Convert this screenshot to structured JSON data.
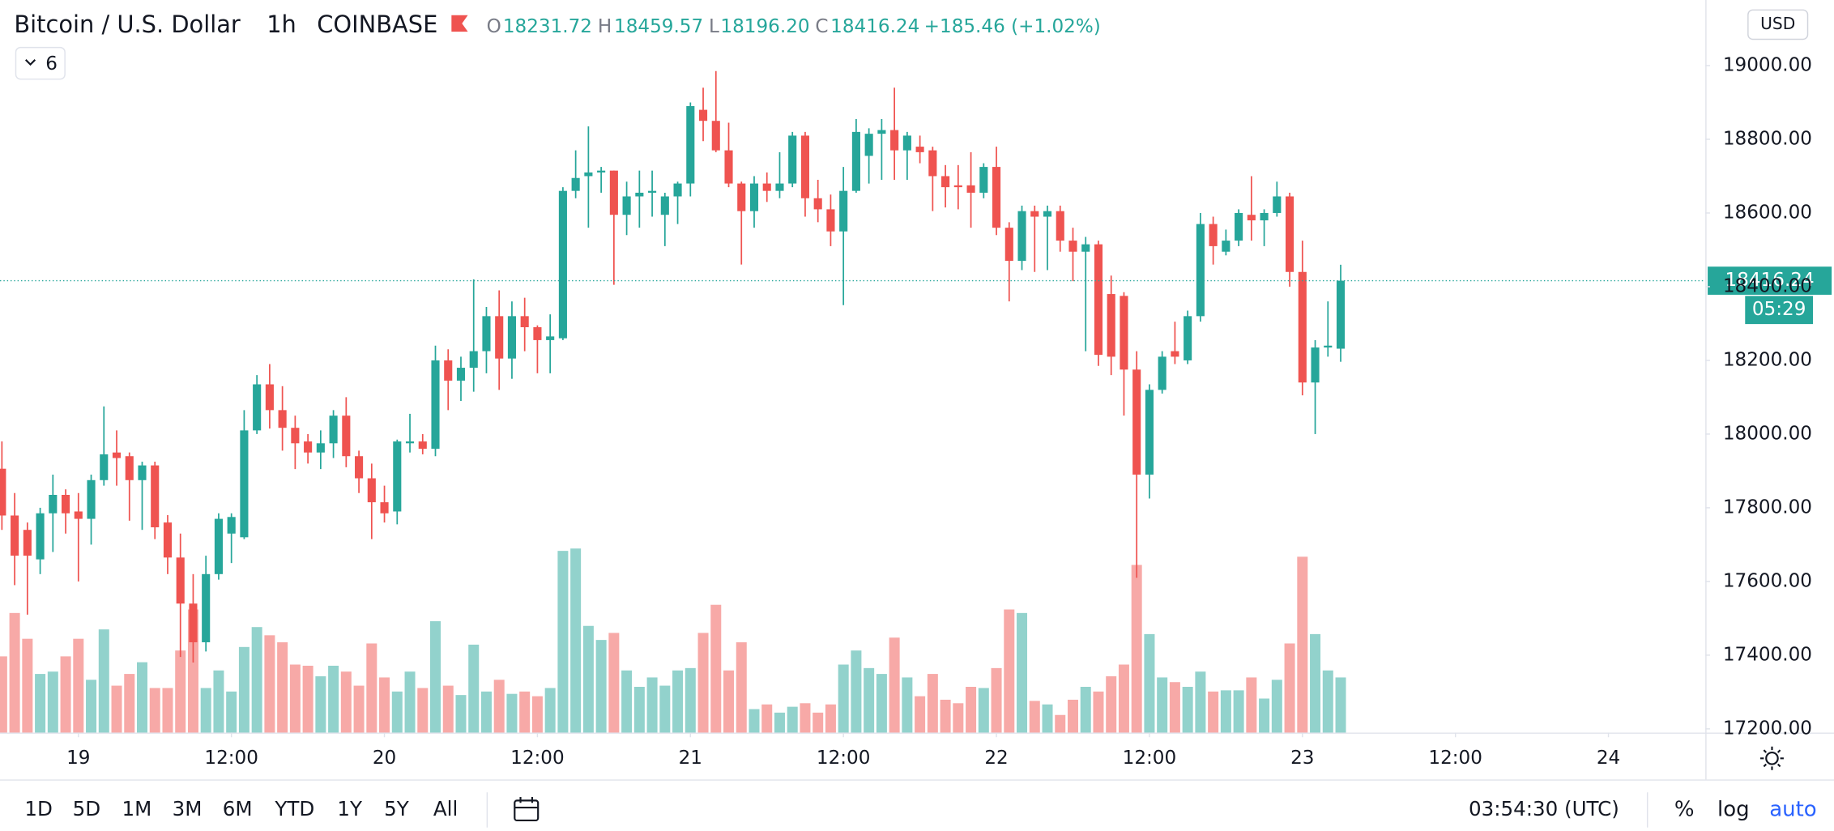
{
  "header": {
    "symbol": "Bitcoin / U.S. Dollar",
    "interval": "1h",
    "exchange": "COINBASE",
    "open_label": "O",
    "open": "18231.72",
    "high_label": "H",
    "high": "18459.57",
    "low_label": "L",
    "low": "18196.20",
    "close_label": "C",
    "close": "18416.24",
    "change": "+185.46 (+1.02%)",
    "indicators_count": "6",
    "currency": "USD",
    "countdown": "05:29"
  },
  "chart_data": {
    "type": "candlestick",
    "up_color": "#26a69a",
    "down_color": "#ef5350",
    "grid": false,
    "open": [
      17906,
      17779,
      17740,
      17660,
      17785,
      17835,
      17790,
      17770,
      17875,
      17950,
      17940,
      17875,
      17915,
      17760,
      17665,
      17540,
      17435,
      17620,
      17730,
      17720,
      18010,
      18135,
      18065,
      18017,
      17980,
      17950,
      17975,
      18050,
      17940,
      17880,
      17815,
      17790,
      17975,
      17980,
      17960,
      18200,
      18145,
      18180,
      18225,
      18320,
      18205,
      18320,
      18290,
      18255,
      18260,
      18660,
      18700,
      18710,
      18715,
      18595,
      18645,
      18655,
      18595,
      18645,
      18680,
      18880,
      18850,
      18770,
      18680,
      18605,
      18680,
      18660,
      18680,
      18810,
      18640,
      18610,
      18550,
      18660,
      18755,
      18815,
      18825,
      18770,
      18780,
      18770,
      18700,
      18675,
      18675,
      18655,
      18725,
      18560,
      18470,
      18605,
      18590,
      18605,
      18525,
      18495,
      18515,
      18380,
      18375,
      18175,
      17890,
      18120,
      18225,
      18200,
      18320,
      18570,
      18495,
      18525,
      18595,
      18580,
      18600,
      18645,
      18440,
      18140,
      18235,
      18231.72
    ],
    "high": [
      17980,
      17840,
      17760,
      17800,
      17890,
      17850,
      17840,
      17890,
      18075,
      18010,
      17950,
      17925,
      17925,
      17780,
      17730,
      17620,
      17670,
      17785,
      17785,
      18065,
      18160,
      18190,
      18130,
      18050,
      18000,
      18010,
      18065,
      18100,
      17955,
      17920,
      17860,
      17985,
      18055,
      18000,
      18240,
      18230,
      18210,
      18420,
      18345,
      18390,
      18360,
      18370,
      18295,
      18325,
      18670,
      18770,
      18835,
      18725,
      18715,
      18685,
      18715,
      18715,
      18655,
      18685,
      18900,
      18940,
      18985,
      18845,
      18685,
      18700,
      18710,
      18765,
      18820,
      18820,
      18690,
      18650,
      18725,
      18855,
      18830,
      18855,
      18940,
      18820,
      18810,
      18780,
      18730,
      18730,
      18765,
      18735,
      18780,
      18575,
      18620,
      18620,
      18620,
      18620,
      18560,
      18535,
      18525,
      18430,
      18385,
      18225,
      18135,
      18225,
      18305,
      18335,
      18600,
      18590,
      18555,
      18610,
      18700,
      18610,
      18685,
      18655,
      18525,
      18255,
      18360,
      18459.57
    ],
    "low": [
      17740,
      17590,
      17510,
      17620,
      17680,
      17730,
      17600,
      17700,
      17860,
      17860,
      17765,
      17740,
      17715,
      17620,
      17395,
      17380,
      17410,
      17605,
      17650,
      17715,
      18000,
      18015,
      17955,
      17905,
      17920,
      17905,
      17935,
      17910,
      17840,
      17715,
      17760,
      17755,
      17950,
      17945,
      17940,
      18065,
      18090,
      18115,
      18165,
      18120,
      18150,
      18225,
      18165,
      18165,
      18255,
      18640,
      18560,
      18655,
      18405,
      18540,
      18560,
      18590,
      18510,
      18570,
      18645,
      18795,
      18765,
      18670,
      18460,
      18560,
      18630,
      18640,
      18670,
      18590,
      18575,
      18510,
      18350,
      18655,
      18680,
      18690,
      18690,
      18690,
      18735,
      18605,
      18615,
      18610,
      18560,
      18640,
      18540,
      18360,
      18445,
      18440,
      18445,
      18495,
      18415,
      18225,
      18185,
      18160,
      18050,
      17610,
      17825,
      18110,
      18190,
      18190,
      18305,
      18460,
      18485,
      18510,
      18525,
      18510,
      18590,
      18400,
      18105,
      18000,
      18210,
      18196.2
    ],
    "close": [
      17779,
      17670,
      17670,
      17785,
      17835,
      17785,
      17770,
      17875,
      17945,
      17935,
      17875,
      17915,
      17747,
      17665,
      17540,
      17435,
      17620,
      17770,
      17775,
      18010,
      18135,
      18065,
      18017,
      17975,
      17950,
      17975,
      18050,
      17940,
      17880,
      17815,
      17785,
      17980,
      17980,
      17960,
      18200,
      18145,
      18180,
      18225,
      18320,
      18205,
      18320,
      18290,
      18255,
      18265,
      18660,
      18695,
      18710,
      18715,
      18595,
      18645,
      18655,
      18660,
      18645,
      18680,
      18890,
      18850,
      18770,
      18680,
      18605,
      18680,
      18660,
      18680,
      18810,
      18640,
      18610,
      18550,
      18660,
      18820,
      18815,
      18825,
      18770,
      18810,
      18765,
      18700,
      18670,
      18670,
      18655,
      18725,
      18560,
      18470,
      18605,
      18590,
      18605,
      18525,
      18495,
      18515,
      18215,
      18210,
      18175,
      17890,
      18120,
      18210,
      18210,
      18320,
      18570,
      18510,
      18525,
      18600,
      18580,
      18600,
      18645,
      18440,
      18140,
      18235,
      18240,
      18416.24
    ],
    "volume": [
      65,
      102,
      80,
      50,
      52,
      65,
      80,
      45,
      88,
      40,
      50,
      60,
      38,
      38,
      70,
      105,
      38,
      53,
      35,
      73,
      90,
      83,
      77,
      58,
      57,
      48,
      57,
      52,
      40,
      76,
      47,
      35,
      52,
      38,
      95,
      40,
      32,
      75,
      35,
      45,
      33,
      35,
      31,
      38,
      155,
      157,
      91,
      79,
      85,
      53,
      39,
      47,
      40,
      53,
      55,
      85,
      109,
      53,
      77,
      20,
      24,
      17,
      22,
      25,
      17,
      24,
      58,
      70,
      55,
      50,
      81,
      47,
      31,
      50,
      28,
      25,
      39,
      38,
      55,
      105,
      102,
      27,
      24,
      15,
      28,
      39,
      35,
      48,
      58,
      143,
      84,
      47,
      43,
      39,
      52,
      35,
      36,
      36,
      47,
      29,
      45,
      76,
      150,
      84,
      53,
      47
    ],
    "ylim": [
      17190,
      19178
    ],
    "yticks": [
      {
        "value": 17200,
        "label": "17200.00"
      },
      {
        "value": 17400,
        "label": "17400.00"
      },
      {
        "value": 17600,
        "label": "17600.00"
      },
      {
        "value": 17800,
        "label": "17800.00"
      },
      {
        "value": 18000,
        "label": "18000.00"
      },
      {
        "value": 18200,
        "label": "18200.00"
      },
      {
        "value": 18400,
        "label": "18400.00"
      },
      {
        "value": 18600,
        "label": "18600.00"
      },
      {
        "value": 18800,
        "label": "18800.00"
      },
      {
        "value": 19000,
        "label": "19000.00"
      }
    ],
    "xlim": [
      -0.15,
      133.6
    ],
    "xticks": [
      {
        "value": 6,
        "label": "19"
      },
      {
        "value": 18,
        "label": "12:00"
      },
      {
        "value": 30,
        "label": "20"
      },
      {
        "value": 42,
        "label": "12:00"
      },
      {
        "value": 54,
        "label": "21"
      },
      {
        "value": 66,
        "label": "12:00"
      },
      {
        "value": 78,
        "label": "22"
      },
      {
        "value": 90,
        "label": "12:00"
      },
      {
        "value": 102,
        "label": "23"
      },
      {
        "value": 114,
        "label": "12:00"
      },
      {
        "value": 126,
        "label": "24"
      }
    ]
  },
  "toolbar": {
    "ranges": [
      "1D",
      "5D",
      "1M",
      "3M",
      "6M",
      "YTD",
      "1Y",
      "5Y",
      "All"
    ],
    "clock": "03:54:30 (UTC)",
    "percent": "%",
    "log": "log",
    "auto": "auto"
  }
}
